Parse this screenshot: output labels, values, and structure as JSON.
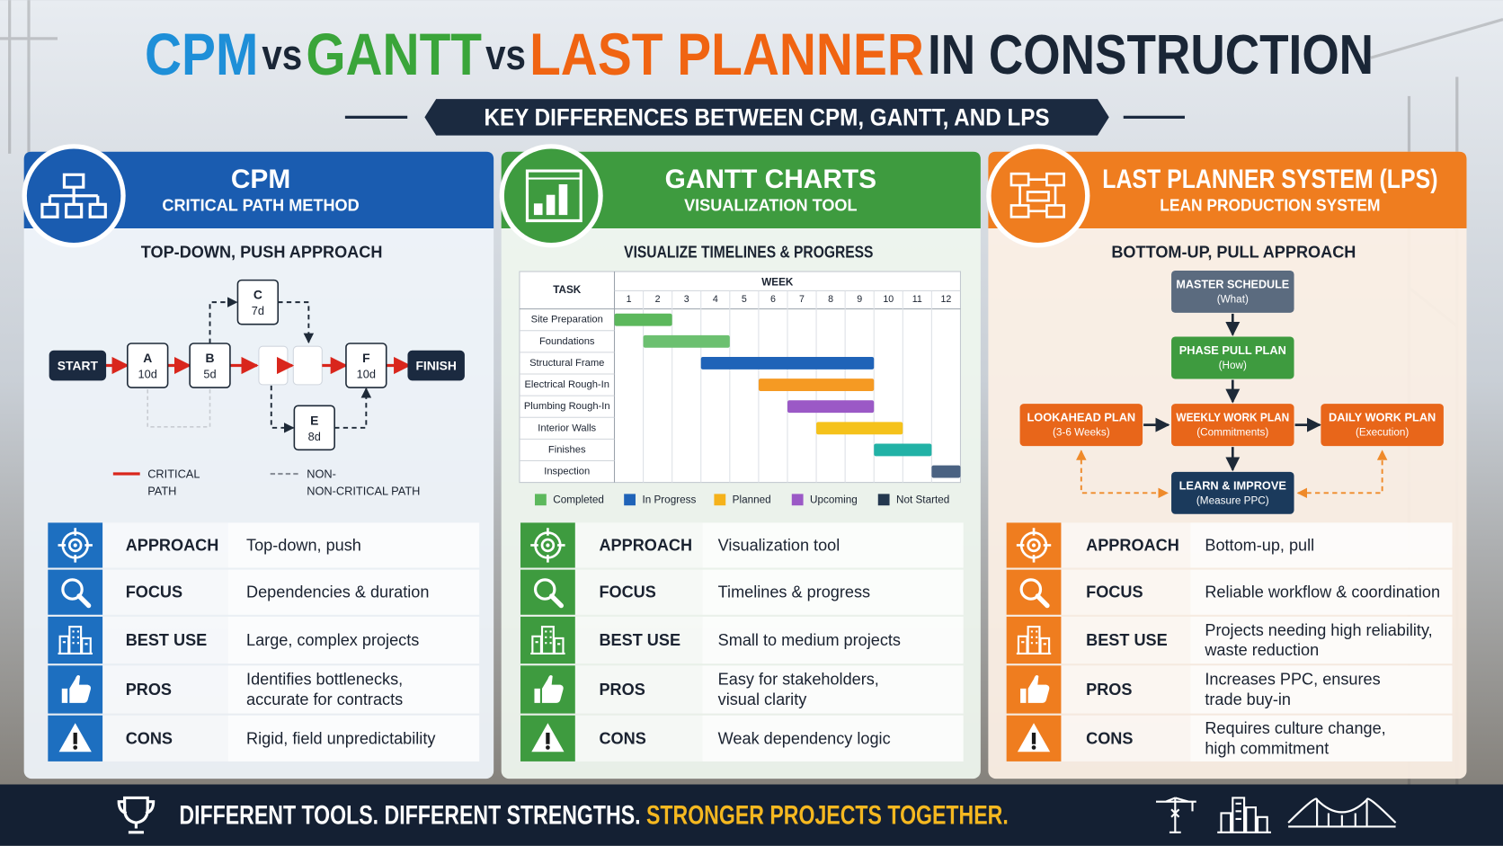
{
  "header": {
    "title": [
      "CPM",
      "vs",
      "GANTT",
      "vs",
      "LAST PLANNER",
      "IN CONSTRUCTION"
    ],
    "subtitle": "KEY DIFFERENCES BETWEEN CPM, GANTT, AND LPS"
  },
  "panels": [
    {
      "title": "CPM",
      "subtitle": "CRITICAL PATH METHOD",
      "heading": "TOP-DOWN, PUSH APPROACH",
      "rows": [
        {
          "label": "APPROACH",
          "value": [
            "Top-down, push"
          ]
        },
        {
          "label": "FOCUS",
          "value": [
            "Dependencies & duration"
          ]
        },
        {
          "label": "BEST USE",
          "value": [
            "Large, complex projects"
          ]
        },
        {
          "label": "PROS",
          "value": [
            "Identifies bottlenecks,",
            "accurate for contracts"
          ]
        },
        {
          "label": "CONS",
          "value": [
            "Rigid, field unpredictability"
          ]
        }
      ]
    },
    {
      "title": "GANTT CHARTS",
      "subtitle": "VISUALIZATION TOOL",
      "heading": "VISUALIZE TIMELINES & PROGRESS",
      "rows": [
        {
          "label": "APPROACH",
          "value": [
            "Visualization tool"
          ]
        },
        {
          "label": "FOCUS",
          "value": [
            "Timelines & progress"
          ]
        },
        {
          "label": "BEST USE",
          "value": [
            "Small to medium projects"
          ]
        },
        {
          "label": "PROS",
          "value": [
            "Easy for stakeholders,",
            "visual clarity"
          ]
        },
        {
          "label": "CONS",
          "value": [
            "Weak dependency logic"
          ]
        }
      ]
    },
    {
      "title": "LAST PLANNER SYSTEM (LPS)",
      "subtitle": "LEAN PRODUCTION SYSTEM",
      "heading": "BOTTOM-UP, PULL APPROACH",
      "rows": [
        {
          "label": "APPROACH",
          "value": [
            "Bottom-up, pull"
          ]
        },
        {
          "label": "FOCUS",
          "value": [
            "Reliable workflow & coordination"
          ]
        },
        {
          "label": "BEST USE",
          "value": [
            "Projects needing high reliability,",
            "waste reduction"
          ]
        },
        {
          "label": "PROS",
          "value": [
            "Increases PPC, ensures",
            "trade buy-in"
          ]
        },
        {
          "label": "CONS",
          "value": [
            "Requires culture change,",
            "high commitment"
          ]
        }
      ]
    }
  ],
  "cpm": {
    "nodes": [
      {
        "label": "START"
      },
      {
        "label": "A",
        "duration": "10d"
      },
      {
        "label": "B",
        "duration": "5d"
      },
      {
        "label": "C",
        "duration": "7d"
      },
      {
        "label": "E",
        "duration": "8d"
      },
      {
        "label": "F",
        "duration": "10d"
      },
      {
        "label": "FINISH"
      }
    ],
    "legend": {
      "critical": [
        "CRITICAL",
        "PATH"
      ],
      "noncritical": [
        "NON-",
        "NON-CRITICAL PATH"
      ]
    }
  },
  "gantt": {
    "task_header": "TASK",
    "week_header": "WEEK",
    "weeks": [
      1,
      2,
      3,
      4,
      5,
      6,
      7,
      8,
      9,
      10,
      11,
      12
    ],
    "tasks": [
      {
        "name": "Site Preparation",
        "start": 1,
        "end": 2,
        "color": "#5cb85c"
      },
      {
        "name": "Foundations",
        "start": 2,
        "end": 4,
        "color": "#6cc070"
      },
      {
        "name": "Structural Frame",
        "start": 4,
        "end": 9,
        "color": "#1f63b8"
      },
      {
        "name": "Electrical Rough-In",
        "start": 6,
        "end": 9,
        "color": "#f59a23"
      },
      {
        "name": "Plumbing Rough-In",
        "start": 7,
        "end": 9,
        "color": "#9b59c6"
      },
      {
        "name": "Interior Walls",
        "start": 8,
        "end": 10,
        "color": "#f5c21b"
      },
      {
        "name": "Finishes",
        "start": 10,
        "end": 11,
        "color": "#22b2a6"
      },
      {
        "name": "Inspection",
        "start": 12,
        "end": 12,
        "color": "#4a6282"
      }
    ],
    "legend": [
      {
        "name": "Completed",
        "color": "#5cb85c"
      },
      {
        "name": "In Progress",
        "color": "#1f63b8"
      },
      {
        "name": "Planned",
        "color": "#f5b21b"
      },
      {
        "name": "Upcoming",
        "color": "#9b59c6"
      },
      {
        "name": "Not Started",
        "color": "#24384f"
      }
    ]
  },
  "lps": {
    "nodes": [
      {
        "title": "MASTER SCHEDULE",
        "note": "(What)"
      },
      {
        "title": "PHASE PULL PLAN",
        "note": "(How)"
      },
      {
        "title": "LOOKAHEAD PLAN",
        "note": "(3-6 Weeks)"
      },
      {
        "title": "WEEKLY WORK PLAN",
        "note": "(Commitments)"
      },
      {
        "title": "DAILY WORK PLAN",
        "note": "(Execution)"
      },
      {
        "title": "LEARN & IMPROVE",
        "note": "(Measure PPC)"
      }
    ]
  },
  "footer": {
    "text": "DIFFERENT TOOLS. DIFFERENT STRENGTHS.",
    "highlight": "STRONGER PROJECTS TOGETHER."
  }
}
